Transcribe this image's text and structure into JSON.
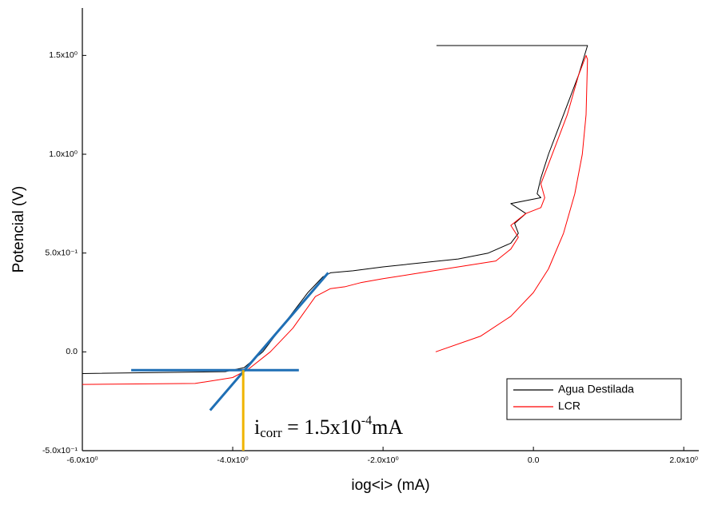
{
  "chart_data": {
    "type": "line",
    "x_label": "iog<i> (mA)",
    "y_label": "Potencial (V)",
    "xlim": [
      -6,
      2.2
    ],
    "ylim": [
      -0.5,
      1.74
    ],
    "xticks": [
      {
        "value": -6,
        "label": "-6.0x10⁰"
      },
      {
        "value": -4,
        "label": "-4.0x10⁰"
      },
      {
        "value": -2,
        "label": "-2.0x10⁰"
      },
      {
        "value": 0,
        "label": "0.0"
      },
      {
        "value": 2,
        "label": "2.0x10⁰"
      }
    ],
    "yticks": [
      {
        "value": -0.5,
        "label": "-5.0x10⁻¹"
      },
      {
        "value": 0,
        "label": "0.0"
      },
      {
        "value": 0.5,
        "label": "5.0x10⁻¹"
      },
      {
        "value": 1,
        "label": "1.0x10⁰"
      },
      {
        "value": 1.5,
        "label": "1.5x10⁰"
      }
    ],
    "legend": "lower right",
    "series": [
      {
        "name": "Agua Destilada",
        "color": "#000000",
        "x": [
          -6,
          -4.1,
          -3.85,
          -3.6,
          -3.3,
          -3.0,
          -2.8,
          -2.7,
          -2.4,
          -2.0,
          -1.5,
          -1.0,
          -0.6,
          -0.3,
          -0.2,
          -0.25,
          -0.1,
          -0.3,
          0.1,
          0.05,
          0.1,
          0.2,
          0.3,
          0.45,
          0.6,
          0.72,
          -1.29
        ],
        "values": [
          -0.11,
          -0.1,
          -0.08,
          0.0,
          0.15,
          0.3,
          0.38,
          0.4,
          0.41,
          0.43,
          0.45,
          0.47,
          0.5,
          0.55,
          0.6,
          0.65,
          0.7,
          0.75,
          0.78,
          0.8,
          0.88,
          1.0,
          1.1,
          1.25,
          1.4,
          1.55,
          1.55
        ]
      },
      {
        "name": "LCR",
        "color": "#ff0000",
        "x": [
          -6,
          -4.5,
          -4.0,
          -3.8,
          -3.5,
          -3.2,
          -2.9,
          -2.7,
          -2.5,
          -2.3,
          -2.0,
          -1.5,
          -1.0,
          -0.5,
          -0.3,
          -0.2,
          -0.3,
          -0.1,
          0.1,
          0.15,
          0.1,
          0.2,
          0.3,
          0.45,
          0.6,
          0.7,
          0.72,
          0.7,
          0.65,
          0.55,
          0.4,
          0.2,
          0.0,
          -0.3,
          -0.7,
          -1.3
        ],
        "values": [
          -0.165,
          -0.16,
          -0.13,
          -0.09,
          0.0,
          0.12,
          0.28,
          0.32,
          0.33,
          0.35,
          0.37,
          0.4,
          0.43,
          0.46,
          0.52,
          0.58,
          0.64,
          0.7,
          0.73,
          0.78,
          0.85,
          0.95,
          1.05,
          1.2,
          1.4,
          1.5,
          1.48,
          1.2,
          1.0,
          0.8,
          0.6,
          0.42,
          0.3,
          0.18,
          0.08,
          0.0
        ]
      }
    ],
    "lines": [
      {
        "color": "#1f6fb5",
        "x": [
          -5.35,
          -3.12
        ],
        "values": [
          -0.093,
          -0.093
        ]
      },
      {
        "color": "#1f6fb5",
        "x": [
          -4.3,
          -2.73
        ],
        "values": [
          -0.296,
          0.4
        ]
      },
      {
        "color": "#f0b400",
        "x": [
          -3.86,
          -3.86
        ],
        "values": [
          -0.093,
          -0.5
        ]
      }
    ],
    "annotation": [
      "i",
      "corr",
      " = 1.5x10",
      "-4",
      "mA"
    ]
  }
}
